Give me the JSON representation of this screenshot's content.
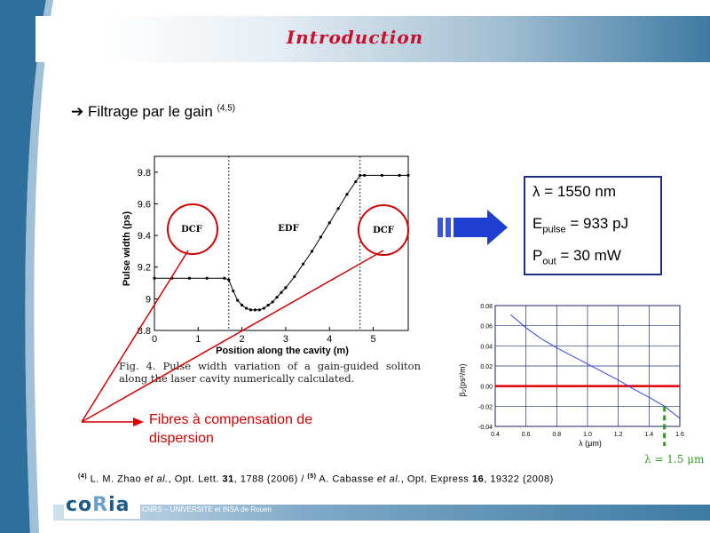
{
  "slide": {
    "title": "Introduction",
    "bullet_arrow": "➔",
    "bullet_text": "Filtrage par le gain",
    "bullet_sup": "(4,5)"
  },
  "figure_left": {
    "caption": "Fig. 4.   Pulse width variation of a gain-guided soliton along the laser cavity numerically calculated.",
    "region_labels": [
      "DCF",
      "EDF",
      "DCF"
    ],
    "circle_labels": [
      "DCF",
      "DCF"
    ]
  },
  "params": {
    "lambda_symbol": "λ",
    "lambda_value": "= 1550 nm",
    "epulse_main": "E",
    "epulse_sub": "pulse",
    "epulse_value": "= 933 pJ",
    "pout_main": "P",
    "pout_sub": "out",
    "pout_value": "= 30 mW"
  },
  "annotations": {
    "fibres_label": "Fibres à compensation de dispersion",
    "lambda_note": "λ = 1.5 μm"
  },
  "reference": {
    "sup1": "(4)",
    "text1a": " L. M. Zhao ",
    "text1b": "et al.",
    "text1c": ", Opt. Lett. ",
    "vol1": "31",
    "text1d": ", 1788 (2006) / ",
    "sup2": "(5)",
    "text2a": " A. Cabasse ",
    "text2b": "et al.",
    "text2c": ", Opt. Express ",
    "vol2": "16",
    "text2d": ", 19322 (2008)"
  },
  "footer": {
    "text": "CNRS – UNIVERSITE et INSA de Rouen",
    "logo_text_a": "co",
    "logo_text_b": "R",
    "logo_text_c": "ia"
  },
  "colors": {
    "title": "#c8102e",
    "annotation_red": "#d40000",
    "box_border": "#1f2e8a",
    "arrow_blue": "#1e3fd0",
    "green": "#2e9e1f"
  },
  "chart_data": [
    {
      "type": "line",
      "xlabel": "Position along the cavity (m)",
      "ylabel": "Pulse width (ps)",
      "xlim": [
        0,
        5.8
      ],
      "ylim": [
        8.8,
        9.9
      ],
      "xticks": [
        0,
        1,
        2,
        3,
        4,
        5
      ],
      "yticks": [
        8.8,
        9,
        9.2,
        9.4,
        9.6,
        9.8
      ],
      "ytick_labels": [
        "8.8",
        "9",
        "9.2",
        "9.4",
        "9.6",
        "9.8"
      ],
      "vlines": [
        1.7,
        4.7
      ],
      "series": [
        {
          "x": [
            0,
            0.4,
            0.8,
            1.2,
            1.6,
            1.7,
            1.8,
            1.9,
            2.0,
            2.1,
            2.2,
            2.3,
            2.4,
            2.5,
            2.6,
            2.7,
            2.8,
            2.9,
            3.0,
            3.2,
            3.4,
            3.6,
            3.8,
            4.0,
            4.2,
            4.4,
            4.6,
            4.7,
            4.8,
            5.2,
            5.6,
            5.8
          ],
          "y": [
            9.13,
            9.13,
            9.13,
            9.13,
            9.13,
            9.12,
            9.05,
            8.99,
            8.96,
            8.94,
            8.93,
            8.93,
            8.93,
            8.94,
            8.96,
            8.98,
            9.01,
            9.04,
            9.07,
            9.14,
            9.22,
            9.3,
            9.39,
            9.48,
            9.57,
            9.66,
            9.74,
            9.78,
            9.78,
            9.78,
            9.78,
            9.78
          ]
        }
      ]
    },
    {
      "type": "line",
      "xlabel": "λ (μm)",
      "ylabel": "β₂(ps²/m)",
      "xlim": [
        0.4,
        1.6
      ],
      "ylim": [
        -0.04,
        0.08
      ],
      "xticks": [
        0.4,
        0.6,
        0.8,
        1.0,
        1.2,
        1.4,
        1.6
      ],
      "xtick_labels": [
        "0.4",
        "0.6",
        "0.8",
        "1.0",
        "1.2",
        "1.4",
        "1.6"
      ],
      "yticks": [
        -0.04,
        -0.02,
        0.0,
        0.02,
        0.04,
        0.06,
        0.08
      ],
      "ytick_labels": [
        "-0.04",
        "-0.02",
        "0.00",
        "0.02",
        "0.04",
        "0.06",
        "0.08"
      ],
      "grid": true,
      "hline": 0.0,
      "vline_dashed": 1.5,
      "series": [
        {
          "x": [
            0.5,
            0.6,
            0.7,
            0.8,
            0.9,
            1.0,
            1.1,
            1.2,
            1.3,
            1.4,
            1.5,
            1.6
          ],
          "y": [
            0.071,
            0.058,
            0.047,
            0.038,
            0.03,
            0.022,
            0.014,
            0.006,
            -0.003,
            -0.011,
            -0.02,
            -0.032
          ]
        }
      ]
    }
  ]
}
